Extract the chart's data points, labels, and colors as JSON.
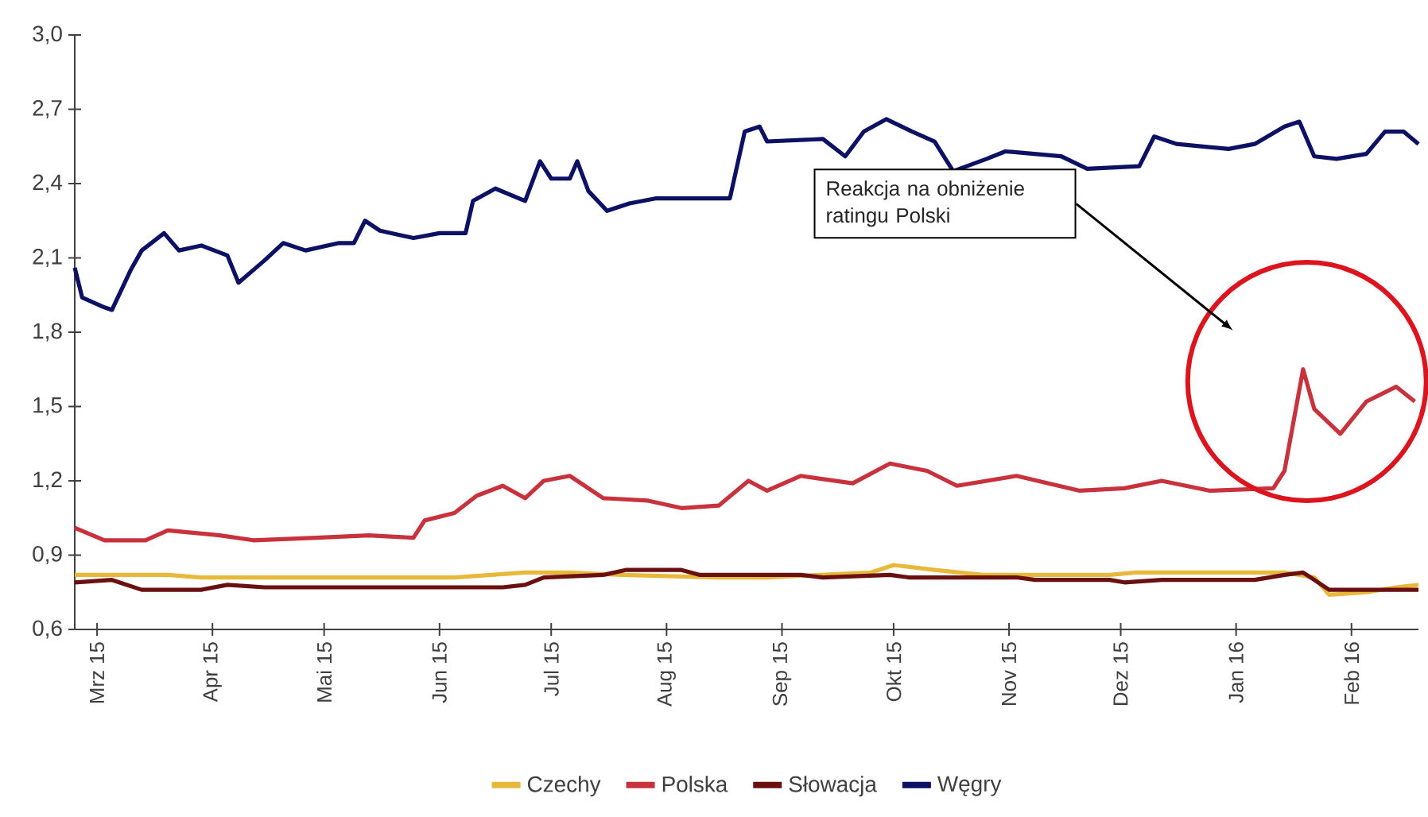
{
  "chart_data": {
    "type": "line",
    "xlim": [
      "2015-02-23",
      "2016-02-19"
    ],
    "xticks": [
      {
        "value": "2015-03-01",
        "label": "Mrz 15"
      },
      {
        "value": "2015-04-01",
        "label": "Apr 15"
      },
      {
        "value": "2015-05-01",
        "label": "Mai 15"
      },
      {
        "value": "2015-06-01",
        "label": "Jun 15"
      },
      {
        "value": "2015-07-01",
        "label": "Jul 15"
      },
      {
        "value": "2015-08-01",
        "label": "Aug 15"
      },
      {
        "value": "2015-09-01",
        "label": "Sep 15"
      },
      {
        "value": "2015-10-01",
        "label": "Okt 15"
      },
      {
        "value": "2015-11-01",
        "label": "Nov 15"
      },
      {
        "value": "2015-12-01",
        "label": "Dez 15"
      },
      {
        "value": "2016-01-01",
        "label": "Jan 16"
      },
      {
        "value": "2016-02-01",
        "label": "Feb 16"
      }
    ],
    "ylim": [
      0.6,
      3.0
    ],
    "yticks": [
      {
        "value": 0.6,
        "label": "0,6"
      },
      {
        "value": 0.9,
        "label": "0,9"
      },
      {
        "value": 1.2,
        "label": "1,2"
      },
      {
        "value": 1.5,
        "label": "1,5"
      },
      {
        "value": 1.8,
        "label": "1,8"
      },
      {
        "value": 2.1,
        "label": "2,1"
      },
      {
        "value": 2.4,
        "label": "2,4"
      },
      {
        "value": 2.7,
        "label": "2,7"
      },
      {
        "value": 3.0,
        "label": "3,0"
      }
    ],
    "grid": false,
    "legend": "bottom",
    "series": [
      {
        "name": "Czechy",
        "color": "#e8b83a",
        "x": [
          "2015-02-23",
          "2015-03-20",
          "2015-03-29",
          "2015-06-05",
          "2015-06-24",
          "2015-07-06",
          "2015-07-20",
          "2015-08-15",
          "2015-08-28",
          "2015-09-25",
          "2015-10-01",
          "2015-10-12",
          "2015-10-25",
          "2015-11-28",
          "2015-12-05",
          "2016-01-14",
          "2016-01-22",
          "2016-01-26",
          "2016-02-05",
          "2016-02-13",
          "2016-02-19"
        ],
        "values": [
          0.82,
          0.82,
          0.81,
          0.81,
          0.83,
          0.83,
          0.82,
          0.81,
          0.81,
          0.83,
          0.86,
          0.84,
          0.82,
          0.82,
          0.83,
          0.83,
          0.81,
          0.74,
          0.75,
          0.77,
          0.78
        ]
      },
      {
        "name": "Polska",
        "color": "#c8323c",
        "x": [
          "2015-02-23",
          "2015-03-03",
          "2015-03-14",
          "2015-03-20",
          "2015-04-03",
          "2015-04-12",
          "2015-04-29",
          "2015-05-13",
          "2015-05-25",
          "2015-05-28",
          "2015-06-05",
          "2015-06-11",
          "2015-06-18",
          "2015-06-24",
          "2015-06-29",
          "2015-07-06",
          "2015-07-15",
          "2015-07-27",
          "2015-08-05",
          "2015-08-15",
          "2015-08-23",
          "2015-08-28",
          "2015-09-06",
          "2015-09-20",
          "2015-09-30",
          "2015-10-10",
          "2015-10-18",
          "2015-11-03",
          "2015-11-20",
          "2015-12-02",
          "2015-12-12",
          "2015-12-25",
          "2016-01-11",
          "2016-01-14",
          "2016-01-19",
          "2016-01-22",
          "2016-01-29",
          "2016-02-05",
          "2016-02-13",
          "2016-02-18"
        ],
        "values": [
          1.01,
          0.96,
          0.96,
          1.0,
          0.98,
          0.96,
          0.97,
          0.98,
          0.97,
          1.04,
          1.07,
          1.14,
          1.18,
          1.13,
          1.2,
          1.22,
          1.13,
          1.12,
          1.09,
          1.1,
          1.2,
          1.16,
          1.22,
          1.19,
          1.27,
          1.24,
          1.18,
          1.22,
          1.16,
          1.17,
          1.2,
          1.16,
          1.17,
          1.24,
          1.65,
          1.49,
          1.39,
          1.52,
          1.58,
          1.52
        ]
      },
      {
        "name": "Słowacja",
        "color": "#6b1010",
        "x": [
          "2015-02-23",
          "2015-03-05",
          "2015-03-13",
          "2015-03-29",
          "2015-04-05",
          "2015-04-15",
          "2015-06-18",
          "2015-06-24",
          "2015-06-29",
          "2015-07-15",
          "2015-07-21",
          "2015-08-05",
          "2015-08-10",
          "2015-09-06",
          "2015-09-12",
          "2015-09-30",
          "2015-10-05",
          "2015-11-03",
          "2015-11-08",
          "2015-11-28",
          "2015-12-02",
          "2015-12-12",
          "2016-01-06",
          "2016-01-14",
          "2016-01-19",
          "2016-01-22",
          "2016-01-26",
          "2016-02-19"
        ],
        "values": [
          0.79,
          0.8,
          0.76,
          0.76,
          0.78,
          0.77,
          0.77,
          0.78,
          0.81,
          0.82,
          0.84,
          0.84,
          0.82,
          0.82,
          0.81,
          0.82,
          0.81,
          0.81,
          0.8,
          0.8,
          0.79,
          0.8,
          0.8,
          0.82,
          0.83,
          0.8,
          0.76,
          0.76
        ]
      },
      {
        "name": "Węgry",
        "color": "#0d1163",
        "x": [
          "2015-02-23",
          "2015-02-25",
          "2015-03-03",
          "2015-03-05",
          "2015-03-10",
          "2015-03-13",
          "2015-03-19",
          "2015-03-23",
          "2015-03-29",
          "2015-04-05",
          "2015-04-08",
          "2015-04-15",
          "2015-04-20",
          "2015-04-26",
          "2015-05-05",
          "2015-05-09",
          "2015-05-12",
          "2015-05-16",
          "2015-05-25",
          "2015-06-01",
          "2015-06-08",
          "2015-06-10",
          "2015-06-16",
          "2015-06-24",
          "2015-06-28",
          "2015-07-01",
          "2015-07-06",
          "2015-07-08",
          "2015-07-11",
          "2015-07-16",
          "2015-07-22",
          "2015-07-29",
          "2015-08-13",
          "2015-08-18",
          "2015-08-22",
          "2015-08-26",
          "2015-08-28",
          "2015-09-12",
          "2015-09-18",
          "2015-09-23",
          "2015-09-29",
          "2015-10-06",
          "2015-10-12",
          "2015-10-17",
          "2015-10-26",
          "2015-10-31",
          "2015-11-15",
          "2015-11-22",
          "2015-12-06",
          "2015-12-10",
          "2015-12-16",
          "2015-12-30",
          "2016-01-06",
          "2016-01-14",
          "2016-01-18",
          "2016-01-22",
          "2016-01-28",
          "2016-02-05",
          "2016-02-10",
          "2016-02-15",
          "2016-02-19"
        ],
        "values": [
          2.06,
          1.94,
          1.9,
          1.89,
          2.05,
          2.13,
          2.2,
          2.13,
          2.15,
          2.11,
          2.0,
          2.09,
          2.16,
          2.13,
          2.16,
          2.16,
          2.25,
          2.21,
          2.18,
          2.2,
          2.2,
          2.33,
          2.38,
          2.33,
          2.49,
          2.42,
          2.42,
          2.49,
          2.37,
          2.29,
          2.32,
          2.34,
          2.34,
          2.34,
          2.61,
          2.63,
          2.57,
          2.58,
          2.51,
          2.61,
          2.66,
          2.61,
          2.57,
          2.45,
          2.5,
          2.53,
          2.51,
          2.46,
          2.47,
          2.59,
          2.56,
          2.54,
          2.56,
          2.63,
          2.65,
          2.51,
          2.5,
          2.52,
          2.61,
          2.61,
          2.56
        ]
      }
    ],
    "annotations": [
      "Reakcja na obniżenie ratingu Polski"
    ]
  }
}
